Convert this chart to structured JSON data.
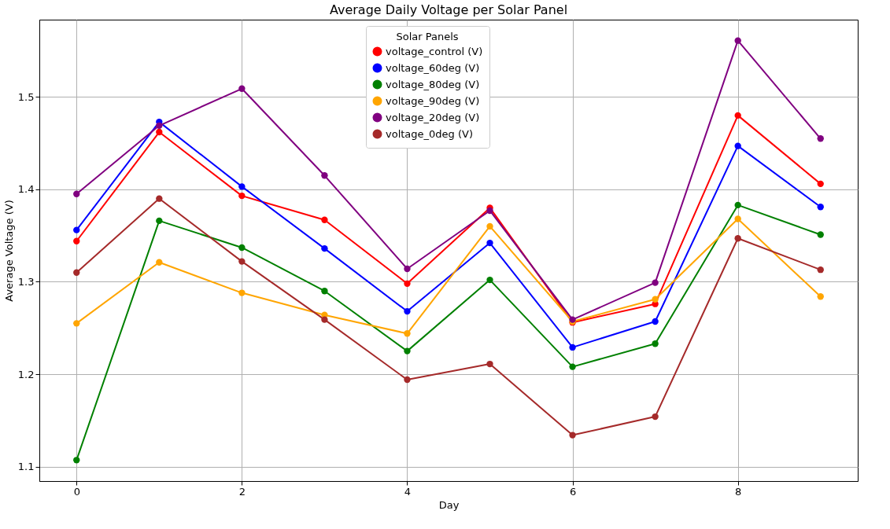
{
  "chart_data": {
    "type": "line",
    "title": "Average Daily Voltage per Solar Panel",
    "xlabel": "Day",
    "ylabel": "Average Voltage (V)",
    "legend_title": "Solar Panels",
    "x": [
      0,
      1,
      2,
      3,
      4,
      5,
      6,
      7,
      8,
      9
    ],
    "series": [
      {
        "name": "voltage_control (V)",
        "color": "#ff0000",
        "values": [
          1.344,
          1.462,
          1.393,
          1.367,
          1.298,
          1.38,
          1.256,
          1.276,
          1.48,
          1.406
        ]
      },
      {
        "name": "voltage_60deg (V)",
        "color": "#0000ff",
        "values": [
          1.356,
          1.473,
          1.403,
          1.336,
          1.268,
          1.342,
          1.229,
          1.257,
          1.447,
          1.381
        ]
      },
      {
        "name": "voltage_80deg (V)",
        "color": "#008000",
        "values": [
          1.107,
          1.366,
          1.337,
          1.29,
          1.225,
          1.302,
          1.208,
          1.233,
          1.383,
          1.351
        ]
      },
      {
        "name": "voltage_90deg (V)",
        "color": "#ffa500",
        "values": [
          1.255,
          1.321,
          1.288,
          1.264,
          1.244,
          1.36,
          1.257,
          1.281,
          1.368,
          1.284
        ]
      },
      {
        "name": "voltage_20deg (V)",
        "color": "#800080",
        "values": [
          1.395,
          1.469,
          1.509,
          1.415,
          1.314,
          1.377,
          1.259,
          1.299,
          1.561,
          1.455
        ]
      },
      {
        "name": "voltage_0deg (V)",
        "color": "#a52a2a",
        "values": [
          1.31,
          1.39,
          1.322,
          1.259,
          1.194,
          1.211,
          1.134,
          1.154,
          1.347,
          1.313
        ]
      }
    ],
    "xlim": [
      -0.45,
      9.45
    ],
    "ylim": [
      1.0843,
      1.5837
    ],
    "xticks": [
      0,
      2,
      4,
      6,
      8
    ],
    "yticks": [
      1.1,
      1.2,
      1.3,
      1.4,
      1.5
    ],
    "grid": true,
    "legend": "top",
    "marker": "circle",
    "line_style": "solid"
  }
}
